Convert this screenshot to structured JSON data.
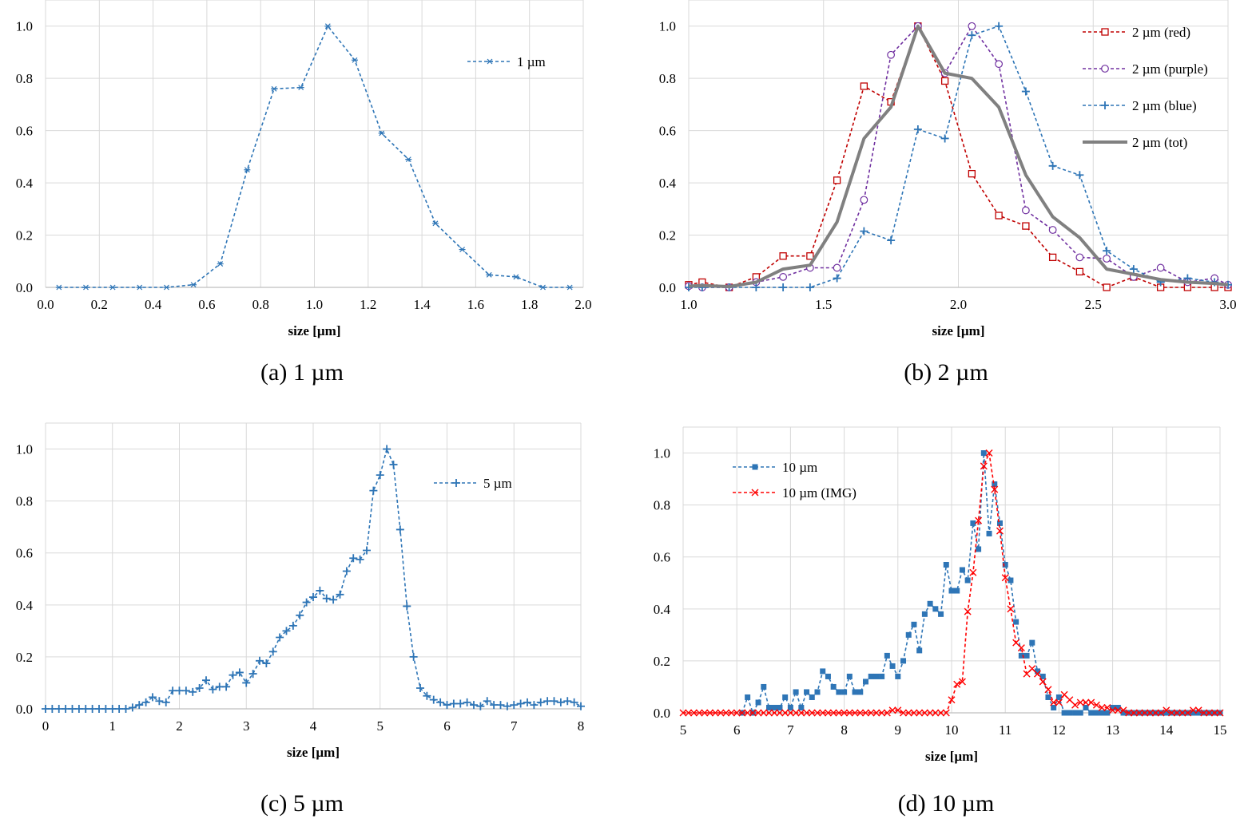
{
  "chart_data": [
    {
      "type": "line",
      "caption": "(a) 1 µm",
      "xlabel": "size [µm]",
      "ylabel": "",
      "xlim": [
        0,
        2
      ],
      "ylim": [
        0,
        1
      ],
      "xticks": [
        "0.0",
        "0.2",
        "0.4",
        "0.6",
        "0.8",
        "1.0",
        "1.2",
        "1.4",
        "1.6",
        "1.8",
        "2.0"
      ],
      "yticks": [
        "0.0",
        "0.2",
        "0.4",
        "0.6",
        "0.8",
        "1.0"
      ],
      "legend_position": "top-right",
      "grid": true,
      "series": [
        {
          "name": "1 µm",
          "color": "#2e75b6",
          "dash": true,
          "marker": "asterisk",
          "x": [
            0.05,
            0.15,
            0.25,
            0.35,
            0.45,
            0.55,
            0.65,
            0.75,
            0.85,
            0.95,
            1.05,
            1.15,
            1.25,
            1.35,
            1.45,
            1.55,
            1.65,
            1.75,
            1.85,
            1.95
          ],
          "y": [
            0,
            0,
            0,
            0,
            0,
            0.01,
            0.09,
            0.45,
            0.76,
            0.765,
            1.0,
            0.87,
            0.59,
            0.49,
            0.245,
            0.145,
            0.048,
            0.04,
            0,
            0
          ]
        }
      ]
    },
    {
      "type": "line",
      "caption": "(b) 2 µm",
      "xlabel": "size [µm]",
      "ylabel": "",
      "xlim": [
        1,
        3
      ],
      "ylim": [
        0,
        1
      ],
      "xticks": [
        "1.0",
        "1.5",
        "2.0",
        "2.5",
        "3.0"
      ],
      "yticks": [
        "0.0",
        "0.2",
        "0.4",
        "0.6",
        "0.8",
        "1.0"
      ],
      "legend_position": "top-right",
      "grid": true,
      "series": [
        {
          "name": "2 µm (red)",
          "color": "#c00000",
          "dash": true,
          "marker": "square-open",
          "x": [
            1.0,
            1.05,
            1.15,
            1.25,
            1.35,
            1.45,
            1.55,
            1.65,
            1.75,
            1.85,
            1.95,
            2.05,
            2.15,
            2.25,
            2.35,
            2.45,
            2.55,
            2.65,
            2.75,
            2.85,
            2.95,
            3.0
          ],
          "y": [
            0.01,
            0.02,
            0,
            0.04,
            0.12,
            0.12,
            0.41,
            0.77,
            0.71,
            1.0,
            0.79,
            0.435,
            0.275,
            0.235,
            0.115,
            0.06,
            0,
            0.04,
            0,
            0,
            0,
            0
          ]
        },
        {
          "name": "2 µm (purple)",
          "color": "#7030a0",
          "dash": true,
          "marker": "circle-open",
          "x": [
            1.0,
            1.05,
            1.15,
            1.25,
            1.35,
            1.45,
            1.55,
            1.65,
            1.75,
            1.85,
            1.95,
            2.05,
            2.15,
            2.25,
            2.35,
            2.45,
            2.55,
            2.65,
            2.75,
            2.85,
            2.95,
            3.0
          ],
          "y": [
            0.005,
            0,
            0,
            0.02,
            0.04,
            0.075,
            0.075,
            0.335,
            0.89,
            1.0,
            0.82,
            1.0,
            0.855,
            0.295,
            0.22,
            0.115,
            0.11,
            0.04,
            0.075,
            0.02,
            0.035,
            0.01
          ]
        },
        {
          "name": "2 µm (blue)",
          "color": "#2e75b6",
          "dash": true,
          "marker": "plus",
          "x": [
            1.0,
            1.05,
            1.15,
            1.25,
            1.35,
            1.45,
            1.55,
            1.65,
            1.75,
            1.85,
            1.95,
            2.05,
            2.15,
            2.25,
            2.35,
            2.45,
            2.55,
            2.65,
            2.75,
            2.85,
            2.95,
            3.0
          ],
          "y": [
            0,
            0,
            0,
            0,
            0,
            0,
            0.035,
            0.215,
            0.18,
            0.605,
            0.57,
            0.965,
            1.0,
            0.75,
            0.465,
            0.43,
            0.14,
            0.07,
            0.02,
            0.035,
            0.02,
            0.01
          ]
        },
        {
          "name": "2 µm (tot)",
          "color": "#808080",
          "dash": false,
          "thick": true,
          "marker": "none",
          "x": [
            1.0,
            1.05,
            1.15,
            1.25,
            1.35,
            1.45,
            1.55,
            1.65,
            1.75,
            1.85,
            1.95,
            2.05,
            2.15,
            2.25,
            2.35,
            2.45,
            2.55,
            2.65,
            2.75,
            2.85,
            2.95,
            3.0
          ],
          "y": [
            0.005,
            0.007,
            0.003,
            0.02,
            0.07,
            0.085,
            0.25,
            0.57,
            0.69,
            1.0,
            0.82,
            0.8,
            0.69,
            0.43,
            0.27,
            0.19,
            0.07,
            0.05,
            0.03,
            0.02,
            0.015,
            0.01
          ]
        }
      ]
    },
    {
      "type": "line",
      "caption": "(c) 5 µm",
      "xlabel": "size [µm]",
      "ylabel": "",
      "xlim": [
        0,
        8
      ],
      "ylim": [
        0,
        1
      ],
      "xticks": [
        "0",
        "1",
        "2",
        "3",
        "4",
        "5",
        "6",
        "7",
        "8"
      ],
      "yticks": [
        "0.0",
        "0.2",
        "0.4",
        "0.6",
        "0.8",
        "1.0"
      ],
      "legend_position": "top-right",
      "grid": true,
      "series": [
        {
          "name": "5 µm",
          "color": "#2e75b6",
          "dash": true,
          "marker": "plus",
          "x": [
            0.0,
            0.1,
            0.2,
            0.3,
            0.4,
            0.5,
            0.6,
            0.7,
            0.8,
            0.9,
            1.0,
            1.1,
            1.2,
            1.3,
            1.4,
            1.5,
            1.6,
            1.7,
            1.8,
            1.9,
            2.0,
            2.1,
            2.2,
            2.3,
            2.4,
            2.5,
            2.6,
            2.7,
            2.8,
            2.9,
            3.0,
            3.1,
            3.2,
            3.3,
            3.4,
            3.5,
            3.6,
            3.7,
            3.8,
            3.9,
            4.0,
            4.1,
            4.2,
            4.3,
            4.4,
            4.5,
            4.6,
            4.7,
            4.8,
            4.9,
            5.0,
            5.1,
            5.2,
            5.3,
            5.4,
            5.5,
            5.6,
            5.7,
            5.8,
            5.9,
            6.0,
            6.1,
            6.2,
            6.3,
            6.4,
            6.5,
            6.6,
            6.7,
            6.8,
            6.9,
            7.0,
            7.1,
            7.2,
            7.3,
            7.4,
            7.5,
            7.6,
            7.7,
            7.8,
            7.9,
            8.0
          ],
          "y": [
            0,
            0,
            0,
            0,
            0,
            0,
            0,
            0,
            0,
            0,
            0,
            0,
            0,
            0.005,
            0.015,
            0.025,
            0.045,
            0.03,
            0.025,
            0.07,
            0.07,
            0.07,
            0.065,
            0.08,
            0.11,
            0.075,
            0.085,
            0.085,
            0.13,
            0.14,
            0.1,
            0.135,
            0.185,
            0.175,
            0.22,
            0.275,
            0.3,
            0.32,
            0.36,
            0.41,
            0.43,
            0.455,
            0.425,
            0.42,
            0.44,
            0.53,
            0.58,
            0.575,
            0.61,
            0.84,
            0.9,
            1.0,
            0.94,
            0.69,
            0.395,
            0.2,
            0.08,
            0.05,
            0.035,
            0.025,
            0.015,
            0.02,
            0.02,
            0.025,
            0.015,
            0.01,
            0.03,
            0.015,
            0.015,
            0.01,
            0.015,
            0.02,
            0.025,
            0.015,
            0.025,
            0.03,
            0.03,
            0.025,
            0.03,
            0.025,
            0.01
          ]
        }
      ]
    },
    {
      "type": "line",
      "caption": "(d) 10 µm",
      "xlabel": "size [µm]",
      "ylabel": "",
      "xlim": [
        5,
        15
      ],
      "ylim": [
        0,
        1
      ],
      "xticks": [
        "5",
        "6",
        "7",
        "8",
        "9",
        "10",
        "11",
        "12",
        "13",
        "14",
        "15"
      ],
      "yticks": [
        "0.0",
        "0.2",
        "0.4",
        "0.6",
        "0.8",
        "1.0"
      ],
      "legend_position": "top-left",
      "grid": true,
      "series": [
        {
          "name": "10 µm",
          "color": "#2e75b6",
          "dash": true,
          "marker": "square-filled",
          "x": [
            6.1,
            6.2,
            6.3,
            6.4,
            6.5,
            6.6,
            6.7,
            6.8,
            6.9,
            7.0,
            7.1,
            7.2,
            7.3,
            7.4,
            7.5,
            7.6,
            7.7,
            7.8,
            7.9,
            8.0,
            8.1,
            8.2,
            8.3,
            8.4,
            8.5,
            8.6,
            8.7,
            8.8,
            8.9,
            9.0,
            9.1,
            9.2,
            9.3,
            9.4,
            9.5,
            9.6,
            9.7,
            9.8,
            9.9,
            10.0,
            10.1,
            10.2,
            10.3,
            10.4,
            10.5,
            10.6,
            10.7,
            10.8,
            10.9,
            11.0,
            11.1,
            11.2,
            11.3,
            11.4,
            11.5,
            11.6,
            11.7,
            11.8,
            11.9,
            12.0,
            12.1,
            12.2,
            12.3,
            12.4,
            12.5,
            12.6,
            12.7,
            12.8,
            12.9,
            13.0,
            13.1,
            13.2,
            13.3,
            13.4,
            13.5,
            13.6,
            13.7,
            13.8,
            13.9,
            14.0,
            14.1,
            14.2,
            14.3,
            14.4,
            14.5,
            14.6,
            14.7,
            14.8,
            14.9,
            15.0
          ],
          "y": [
            0,
            0.06,
            0,
            0.04,
            0.1,
            0.02,
            0.02,
            0.02,
            0.06,
            0.02,
            0.08,
            0.02,
            0.08,
            0.06,
            0.08,
            0.16,
            0.14,
            0.1,
            0.08,
            0.08,
            0.14,
            0.08,
            0.08,
            0.12,
            0.14,
            0.14,
            0.14,
            0.22,
            0.18,
            0.14,
            0.2,
            0.3,
            0.34,
            0.24,
            0.38,
            0.42,
            0.4,
            0.38,
            0.57,
            0.47,
            0.47,
            0.55,
            0.51,
            0.73,
            0.63,
            1.0,
            0.69,
            0.88,
            0.73,
            0.57,
            0.51,
            0.35,
            0.22,
            0.22,
            0.27,
            0.16,
            0.14,
            0.06,
            0.02,
            0.06,
            0,
            0,
            0,
            0,
            0.02,
            0,
            0,
            0,
            0,
            0.02,
            0.02,
            0,
            0,
            0,
            0,
            0,
            0,
            0,
            0,
            0,
            0,
            0,
            0,
            0,
            0,
            0,
            0,
            0,
            0,
            0
          ]
        },
        {
          "name": "10 µm (IMG)",
          "color": "#ff0000",
          "dash": true,
          "marker": "x",
          "x": [
            5.0,
            5.1,
            5.2,
            5.3,
            5.4,
            5.5,
            5.6,
            5.7,
            5.8,
            5.9,
            6.0,
            6.1,
            6.2,
            6.3,
            6.4,
            6.5,
            6.6,
            6.7,
            6.8,
            6.9,
            7.0,
            7.1,
            7.2,
            7.3,
            7.4,
            7.5,
            7.6,
            7.7,
            7.8,
            7.9,
            8.0,
            8.1,
            8.2,
            8.3,
            8.4,
            8.5,
            8.6,
            8.7,
            8.8,
            8.9,
            9.0,
            9.1,
            9.2,
            9.3,
            9.4,
            9.5,
            9.6,
            9.7,
            9.8,
            9.9,
            10.0,
            10.1,
            10.2,
            10.3,
            10.4,
            10.5,
            10.6,
            10.7,
            10.8,
            10.9,
            11.0,
            11.1,
            11.2,
            11.3,
            11.4,
            11.5,
            11.6,
            11.7,
            11.8,
            11.9,
            12.0,
            12.1,
            12.2,
            12.3,
            12.4,
            12.5,
            12.6,
            12.7,
            12.8,
            12.9,
            13.0,
            13.1,
            13.2,
            13.3,
            13.4,
            13.5,
            13.6,
            13.7,
            13.8,
            13.9,
            14.0,
            14.1,
            14.2,
            14.3,
            14.4,
            14.5,
            14.6,
            14.7,
            14.8,
            14.9,
            15.0
          ],
          "y": [
            0,
            0,
            0,
            0,
            0,
            0,
            0,
            0,
            0,
            0,
            0,
            0,
            0,
            0,
            0,
            0,
            0,
            0,
            0,
            0,
            0,
            0,
            0,
            0,
            0,
            0,
            0,
            0,
            0,
            0,
            0,
            0,
            0,
            0,
            0,
            0,
            0,
            0,
            0,
            0.01,
            0.01,
            0,
            0,
            0,
            0,
            0,
            0,
            0,
            0,
            0,
            0.05,
            0.11,
            0.12,
            0.39,
            0.54,
            0.74,
            0.95,
            1.0,
            0.86,
            0.7,
            0.52,
            0.4,
            0.27,
            0.25,
            0.15,
            0.17,
            0.15,
            0.12,
            0.09,
            0.04,
            0.04,
            0.07,
            0.05,
            0.03,
            0.04,
            0.04,
            0.04,
            0.03,
            0.02,
            0.02,
            0.01,
            0.01,
            0.01,
            0,
            0,
            0,
            0,
            0,
            0,
            0,
            0.01,
            0,
            0,
            0,
            0,
            0.01,
            0.01,
            0,
            0,
            0,
            0
          ]
        }
      ]
    }
  ]
}
